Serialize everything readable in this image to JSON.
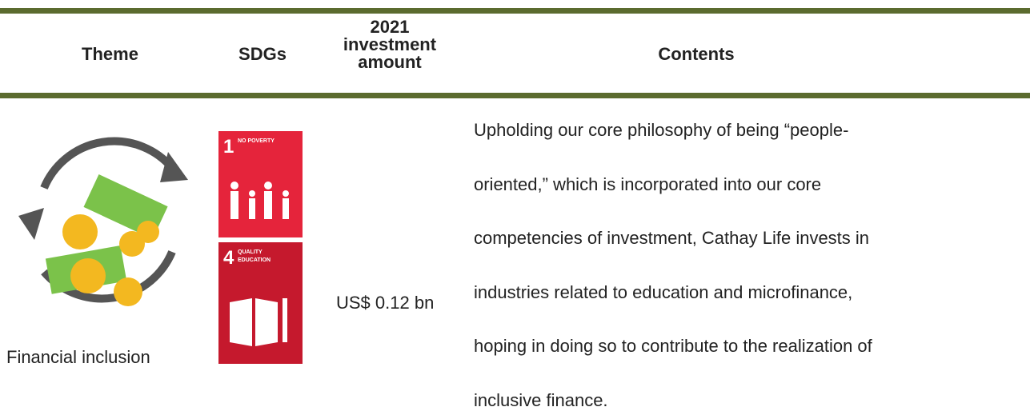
{
  "header": {
    "columns": [
      "Theme",
      "SDGs",
      "2021 investment amount",
      "Contents"
    ]
  },
  "row": {
    "theme": "Financial inclusion",
    "sdgs": [
      {
        "number": "1",
        "label": "NO POVERTY"
      },
      {
        "number": "4",
        "label": "QUALITY EDUCATION"
      }
    ],
    "investment": "US$ 0.12 bn",
    "contents": [
      "Upholding our core philosophy of being “people-",
      "oriented,” which is incorporated into our core",
      "competencies of investment, Cathay Life invests in",
      "industries related to education and microfinance,",
      "hoping in doing so to contribute to the realization of",
      "inclusive finance."
    ]
  }
}
